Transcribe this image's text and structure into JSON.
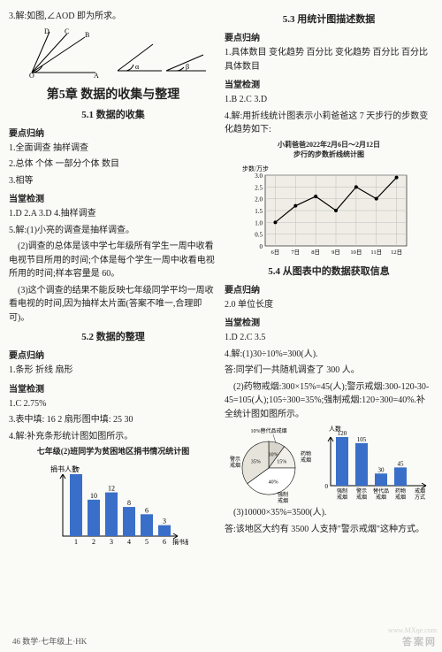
{
  "left": {
    "top_line": "3.解:如图,∠AOD 即为所求。",
    "chapter": "第5章  数据的收集与整理",
    "sec51": "5.1  数据的收集",
    "h_points": "要点归纳",
    "p51_1": "1.全面调查  抽样调查",
    "p51_2": "2.总体  个体  一部分个体  数目",
    "p51_3": "3.相等",
    "h_check": "当堂检测",
    "c51_1": "1.D  2.A  3.D  4.抽样调查",
    "c51_5a": "5.解:(1)小亮的调查是抽样调查。",
    "c51_5b": "(2)调查的总体是该中学七年级所有学生一周中收看电视节目所用的时间;个体是每个学生一周中收看电视所用的时间;样本容量是 60。",
    "c51_5c": "(3)这个调查的结果不能反映七年级同学平均一周收看电视的时间,因为抽样太片面(答案不唯一,合理即可)。",
    "sec52": "5.2  数据的整理",
    "p52_1": "1.条形  折线  扇形",
    "c52_1": "1.C  2.75%",
    "c52_3": "3.表中填: 16  2  扇形图中填: 25  30",
    "c52_4": "4.解:补充条形统计图如图所示。",
    "bar_title": "七年级(2)班同学为贫困地区捐书情况统计图",
    "bar_y_label": "捐书人数",
    "bar_x_label": "捐书册数",
    "bar": {
      "categories": [
        "1",
        "2",
        "3",
        "4",
        "5",
        "6"
      ],
      "values": [
        17,
        10,
        12,
        8,
        6,
        3
      ],
      "labels": [
        "17",
        "10",
        "12",
        "8",
        "6",
        "3"
      ],
      "ymax": 17,
      "bar_color": "#3a6fc9",
      "axis_color": "#000000"
    },
    "angle_fig": {
      "labels": [
        "D",
        "C",
        "B",
        "O",
        "A",
        "α",
        "β"
      ]
    }
  },
  "right": {
    "sec53": "5.3  用统计图描述数据",
    "p53_1": "1.具体数目  变化趋势  百分比  变化趋势  百分比  百分比  具体数目",
    "c53_1": "1.B  2.C  3.D",
    "c53_4a": "4.解:用折线统计图表示小莉爸爸这 7 天步行的步数变化趋势如下:",
    "linec_title1": "小莉爸爸2022年2月6日～2月12日",
    "linec_title2": "步行的步数折线统计图",
    "linec_y_label": "步数/万步",
    "linec": {
      "x_labels": [
        "6日",
        "7日",
        "8日",
        "9日",
        "10日",
        "11日",
        "12日"
      ],
      "y_ticks": [
        "0.5",
        "1.0",
        "1.5",
        "2.0",
        "2.5",
        "3.0"
      ],
      "values": [
        1.0,
        1.7,
        2.1,
        1.5,
        2.5,
        2.0,
        2.9
      ],
      "line_color": "#000000",
      "grid_color": "#bdbdbd",
      "bg": "#efede6"
    },
    "sec54": "5.4  从图表中的数据获取信息",
    "p54_1": "2.0  单位长度",
    "c54_1": "1.D  2.C  3.5",
    "c54_4a": "4.解:(1)30÷10%=300(人).",
    "c54_4b": "答:同学们一共随机调查了 300 人。",
    "c54_4c": "(2)药物戒烟:300×15%=45(人);警示戒烟:300-120-30-45=105(人);105÷300=35%;强制戒烟:120÷300=40%.补全统计图如图所示。",
    "pie": {
      "labels": [
        "替代品戒烟",
        "药物戒烟",
        "强制戒烟",
        "警示戒烟"
      ],
      "pct_labels": [
        "10%",
        "15%",
        "40%",
        "35%"
      ],
      "pct": [
        10,
        15,
        40,
        35
      ],
      "colors": [
        "#d8d6cc",
        "#f0efe9",
        "#ffffff",
        "#e6e4da"
      ],
      "stroke": "#000000"
    },
    "bar2_y_label": "人数",
    "bar2": {
      "categories": [
        "强制\n戒烟",
        "警示\n戒烟",
        "替代品\n戒烟",
        "药物\n戒烟",
        "戒烟\n方式"
      ],
      "values": [
        120,
        105,
        30,
        45
      ],
      "labels": [
        "120",
        "105",
        "30",
        "45"
      ],
      "ymax": 120,
      "bar_color": "#3a6fc9",
      "axis_color": "#000000"
    },
    "c54_4d": "(3)10000×35%=3500(人).",
    "c54_4e": "答:该地区大约有 3500 人支持\"警示戒烟\"这种方式。"
  },
  "footer": "46  数学·七年级上·HK",
  "wm1": "答案网",
  "wm2": "www.MXqe.com"
}
